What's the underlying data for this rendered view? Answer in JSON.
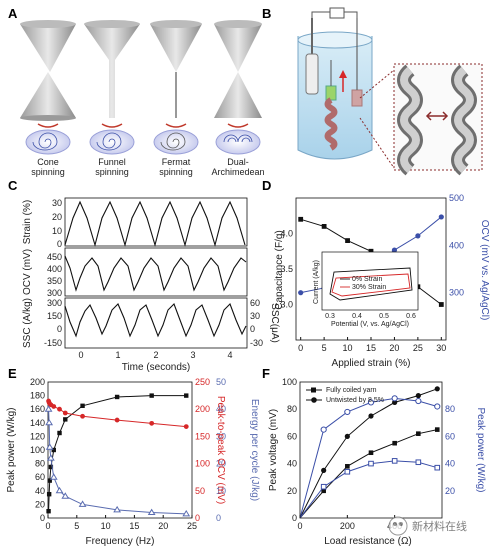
{
  "panels": {
    "A": "A",
    "B": "B",
    "C": "C",
    "D": "D",
    "E": "E",
    "F": "F"
  },
  "panel_a": {
    "labels": [
      [
        "Cone",
        "spinning"
      ],
      [
        "Funnel",
        "spinning"
      ],
      [
        "Fermat",
        "spinning"
      ],
      [
        "Dual-",
        "Archimedean"
      ]
    ]
  },
  "panel_c": {
    "rows": [
      {
        "ylabel": "Strain (%)",
        "ticks": [
          30,
          20,
          10,
          0
        ]
      },
      {
        "ylabel": "OCV (mV)",
        "ticks": [
          450,
          400,
          350,
          300
        ]
      },
      {
        "ylabel": "SSC (A/kg)",
        "ticks": [
          300,
          150,
          0,
          -150
        ],
        "right_label": "SSC(μA)",
        "right_ticks": [
          60,
          30,
          0,
          -30
        ]
      }
    ],
    "x_ticks": [
      0,
      1,
      2,
      3,
      4
    ],
    "xlabel": "Time (seconds)"
  },
  "chart_data": [
    {
      "type": "line",
      "panel": "D",
      "xlabel": "Applied strain (%)",
      "ylabel": "Capacitance (F/g)",
      "y2label": "OCV (mV vs. Ag/AgCl)",
      "x": [
        0,
        5,
        10,
        15,
        20,
        25,
        30
      ],
      "xlim": [
        -1,
        31
      ],
      "ylim": [
        2.5,
        4.5
      ],
      "y2lim": [
        200,
        500
      ],
      "y_ticks": [
        3.0,
        3.5,
        4.0
      ],
      "y2_ticks": [
        300,
        400,
        500
      ],
      "x_ticks": [
        0,
        5,
        10,
        15,
        20,
        25,
        30
      ],
      "series": [
        {
          "values": [
            4.2,
            4.1,
            3.9,
            3.75,
            3.45,
            3.25,
            3.0
          ],
          "color": "#111111",
          "axis": "left"
        },
        {
          "values": [
            300,
            310,
            325,
            350,
            390,
            420,
            460
          ],
          "color": "#3b4fa8",
          "axis": "right"
        }
      ],
      "inset": {
        "xlabel": "Potential (V, vs. Ag/AgCl)",
        "ylabel": "Current (A/kg)",
        "x_ticks": [
          0.3,
          0.4,
          0.5,
          0.6
        ],
        "legend": [
          "0% Strain",
          "30% Strain"
        ]
      }
    },
    {
      "type": "line",
      "panel": "E",
      "xlabel": "Frequency (Hz)",
      "ylabel": "Peak power (W/kg)",
      "y2label": "Peak-to-peak OCV (mV)",
      "y3label": "Energy per cycle (J/kg)",
      "xlim": [
        0,
        25
      ],
      "ylim": [
        0,
        200
      ],
      "y2lim": [
        0,
        250
      ],
      "y3lim": [
        0,
        50
      ],
      "x_ticks": [
        0,
        5,
        10,
        15,
        20,
        25
      ],
      "y_ticks": [
        0,
        20,
        40,
        60,
        80,
        100,
        120,
        140,
        160,
        180,
        200
      ],
      "y2_ticks": [
        0,
        50,
        100,
        150,
        200,
        250
      ],
      "y3_ticks": [
        0,
        10,
        20,
        30,
        40,
        50
      ],
      "series": [
        {
          "x": [
            0.1,
            0.2,
            0.3,
            0.5,
            1,
            2,
            3,
            6,
            12,
            18,
            24
          ],
          "values": [
            10,
            35,
            55,
            75,
            100,
            125,
            145,
            165,
            178,
            180,
            180
          ],
          "color": "#111111",
          "axis": "left"
        },
        {
          "x": [
            0.1,
            0.2,
            0.3,
            0.5,
            1,
            2,
            3,
            6,
            12,
            18,
            24
          ],
          "values": [
            215,
            212,
            210,
            208,
            205,
            200,
            193,
            187,
            180,
            174,
            168
          ],
          "color": "#d62728",
          "axis": "right"
        },
        {
          "x": [
            0.1,
            0.2,
            0.3,
            0.5,
            1,
            2,
            3,
            6,
            12,
            18,
            24
          ],
          "values": [
            40,
            35,
            26,
            22,
            15,
            10,
            8,
            5,
            3,
            2,
            1.5
          ],
          "color": "#5a6cb0",
          "axis": "third"
        }
      ]
    },
    {
      "type": "line",
      "panel": "F",
      "xlabel": "Load resistance (Ω)",
      "ylabel": "Peak voltage (mV)",
      "y2label": "Peak power (W/kg)",
      "xlim": [
        0,
        600
      ],
      "ylim": [
        0,
        100
      ],
      "y2lim": [
        0,
        100
      ],
      "x_ticks": [
        0,
        200,
        400
      ],
      "y_ticks": [
        0,
        20,
        40,
        60,
        80,
        100
      ],
      "y2_ticks": [
        20,
        40,
        60,
        80
      ],
      "legend": [
        "Fully coiled yarn",
        "Untwisted by 8.5%"
      ],
      "series": [
        {
          "name": "Fully coiled yarn",
          "x": [
            100,
            200,
            300,
            400,
            500,
            580
          ],
          "values": [
            20,
            38,
            48,
            55,
            62,
            65
          ],
          "color": "#111111",
          "axis": "left",
          "marker": "square"
        },
        {
          "name": "Untwisted by 8.5%",
          "x": [
            100,
            200,
            300,
            400,
            500,
            580
          ],
          "values": [
            35,
            60,
            75,
            85,
            90,
            95
          ],
          "color": "#111111",
          "axis": "left",
          "marker": "circle"
        },
        {
          "name": "Fully coiled yarn",
          "x": [
            100,
            200,
            300,
            400,
            500,
            580
          ],
          "values": [
            23,
            34,
            40,
            42,
            41,
            37
          ],
          "color": "#3b4fa8",
          "axis": "right",
          "marker": "square-open"
        },
        {
          "name": "Untwisted by 8.5%",
          "x": [
            100,
            200,
            300,
            400,
            500,
            580
          ],
          "values": [
            65,
            78,
            85,
            88,
            86,
            82
          ],
          "color": "#3b4fa8",
          "axis": "right",
          "marker": "circle-open"
        }
      ]
    }
  ],
  "watermark": "新材料在线"
}
